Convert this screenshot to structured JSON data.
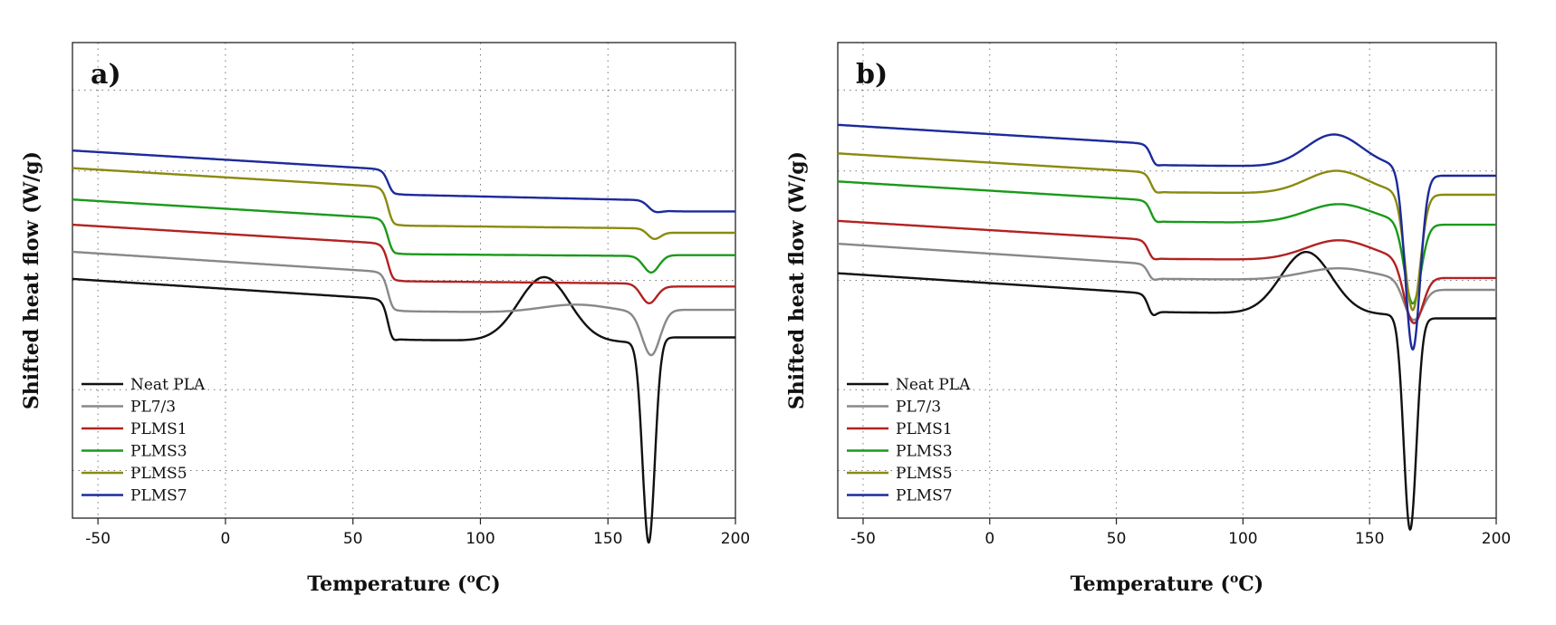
{
  "chart_data": [
    {
      "type": "line",
      "panel_label": "a)",
      "xlabel": "Temperature (",
      "xlabel_sup": "o",
      "xlabel_unit": "C)",
      "ylabel": "Shifted heat flow (W/g)",
      "xlim": [
        -60,
        200
      ],
      "xticks": [
        "-50",
        "0",
        "50",
        "100",
        "150",
        "200"
      ],
      "xtick_values": [
        -50,
        0,
        50,
        100,
        150,
        200
      ],
      "ylim": [
        0,
        100
      ],
      "grid": "dotted",
      "legend_position": "bottom-left",
      "series": [
        {
          "name": "Neat PLA",
          "color": "#111111",
          "baseline": 50.3,
          "slope": 4.5,
          "tg": 64,
          "tg_step": 6.5,
          "tg_dip": 1.5,
          "post": 37.5,
          "post_slope": 0.6,
          "coldx": 125,
          "coldx_amp": 13.5,
          "coldx_w": 10,
          "melt": 166,
          "melt_depth": 42.3,
          "melt_w": 2.4,
          "melt_dip2": 0,
          "end": 38.0,
          "tail": 8
        },
        {
          "name": "PL7/3",
          "color": "#888888",
          "baseline": 56.0,
          "slope": 4.5,
          "tg": 64,
          "tg_step": 3.5,
          "tg_dip": 0.8,
          "post": 43.5,
          "post_slope": 0.6,
          "coldx": 138,
          "coldx_amp": 1.8,
          "coldx_w": 14,
          "melt": 167,
          "melt_depth": 9.0,
          "melt_w": 3.5,
          "melt_dip2": 0,
          "end": 43.8,
          "tail": 8
        },
        {
          "name": "PLMS1",
          "color": "#b22222",
          "baseline": 61.7,
          "slope": 4.2,
          "tg": 64,
          "tg_step": 3.8,
          "tg_dip": 0.8,
          "post": 49.8,
          "post_slope": 0.5,
          "coldx": 140,
          "coldx_amp": 0,
          "coldx_w": 14,
          "melt": 166,
          "melt_depth": 4.0,
          "melt_w": 3.0,
          "melt_dip2": 0,
          "end": 48.7,
          "tail": 6
        },
        {
          "name": "PLMS3",
          "color": "#1a9a1a",
          "baseline": 67.0,
          "slope": 4.2,
          "tg": 64,
          "tg_step": 3.8,
          "tg_dip": 0.8,
          "post": 55.5,
          "post_slope": 0.4,
          "coldx": 140,
          "coldx_amp": 0,
          "coldx_w": 14,
          "melt": 167,
          "melt_depth": 3.5,
          "melt_w": 3.0,
          "melt_dip2": 0,
          "end": 55.3,
          "tail": 6
        },
        {
          "name": "PLMS5",
          "color": "#8a8a10",
          "baseline": 73.6,
          "slope": 4.2,
          "tg": 64,
          "tg_step": 3.5,
          "tg_dip": 0.8,
          "post": 61.5,
          "post_slope": 0.6,
          "coldx": 140,
          "coldx_amp": 0,
          "coldx_w": 14,
          "melt": 168,
          "melt_depth": 2.0,
          "melt_w": 2.5,
          "melt_dip2": 0,
          "end": 60.0,
          "tail": 6
        },
        {
          "name": "PLMS7",
          "color": "#1c2a9a",
          "baseline": 77.3,
          "slope": 4.2,
          "tg": 64,
          "tg_step": 3.0,
          "tg_dip": 0.5,
          "post": 68.0,
          "post_slope": 1.2,
          "coldx": 140,
          "coldx_amp": 0,
          "coldx_w": 14,
          "melt": 168,
          "melt_depth": 1.8,
          "melt_w": 2.5,
          "melt_dip2": 0,
          "end": 64.5,
          "tail": 6
        }
      ]
    },
    {
      "type": "line",
      "panel_label": "b)",
      "xlabel": "Temperature (",
      "xlabel_sup": "o",
      "xlabel_unit": "C)",
      "ylabel": "Shifted heat flow (W/g)",
      "xlim": [
        -60,
        200
      ],
      "xticks": [
        "-50",
        "0",
        "50",
        "100",
        "150",
        "200"
      ],
      "xtick_values": [
        -50,
        0,
        50,
        100,
        150,
        200
      ],
      "ylim": [
        0,
        100
      ],
      "grid": "dotted",
      "legend_position": "bottom-left",
      "series": [
        {
          "name": "Neat PLA",
          "color": "#111111",
          "baseline": 51.5,
          "slope": 4.5,
          "tg": 63,
          "tg_step": 6.8,
          "tg_dip": 1.5,
          "post": 43.3,
          "post_slope": 0.6,
          "coldx": 125,
          "coldx_amp": 13.0,
          "coldx_w": 10,
          "melt": 166,
          "melt_depth": 45.0,
          "melt_w": 2.5,
          "melt_dip2": 0,
          "end": 42.0,
          "tail": 8
        },
        {
          "name": "PL7/3",
          "color": "#888888",
          "baseline": 57.7,
          "slope": 4.5,
          "tg": 63,
          "tg_step": 3.8,
          "tg_dip": 0.8,
          "post": 50.3,
          "post_slope": 0.4,
          "coldx": 138,
          "coldx_amp": 2.5,
          "coldx_w": 14,
          "melt": 167,
          "melt_depth": 8.0,
          "melt_w": 3.5,
          "melt_dip2": 0,
          "end": 48.0,
          "tail": 8
        },
        {
          "name": "PLMS1",
          "color": "#b22222",
          "baseline": 62.5,
          "slope": 4.2,
          "tg": 63,
          "tg_step": 3.8,
          "tg_dip": 0.8,
          "post": 54.5,
          "post_slope": 0.4,
          "coldx": 138,
          "coldx_amp": 4.2,
          "coldx_w": 13,
          "melt": 167,
          "melt_depth": 12.5,
          "melt_w": 3.5,
          "melt_dip2": 0,
          "end": 50.5,
          "tail": 8
        },
        {
          "name": "PLMS3",
          "color": "#1a9a1a",
          "baseline": 70.8,
          "slope": 4.2,
          "tg": 64,
          "tg_step": 3.8,
          "tg_dip": 0.8,
          "post": 62.3,
          "post_slope": 0.4,
          "coldx": 138,
          "coldx_amp": 4.0,
          "coldx_w": 13,
          "melt": 167,
          "melt_depth": 17.0,
          "melt_w": 3.2,
          "melt_dip2": 0,
          "end": 61.7,
          "tail": 8
        },
        {
          "name": "PLMS5",
          "color": "#8a8a10",
          "baseline": 76.7,
          "slope": 4.2,
          "tg": 64,
          "tg_step": 3.8,
          "tg_dip": 0.8,
          "post": 68.5,
          "post_slope": 0.4,
          "coldx": 137,
          "coldx_amp": 4.8,
          "coldx_w": 12,
          "melt": 167,
          "melt_depth": 24.5,
          "melt_w": 3.0,
          "melt_dip2": 0,
          "end": 68.0,
          "tail": 8
        },
        {
          "name": "PLMS7",
          "color": "#1c2a9a",
          "baseline": 82.7,
          "slope": 4.2,
          "tg": 64,
          "tg_step": 3.8,
          "tg_dip": 0.8,
          "post": 74.2,
          "post_slope": 0.5,
          "coldx": 136,
          "coldx_amp": 6.8,
          "coldx_w": 11,
          "melt": 167,
          "melt_depth": 38.0,
          "melt_w": 2.9,
          "melt_dip2": 0,
          "end": 72.0,
          "tail": 8
        }
      ]
    }
  ]
}
